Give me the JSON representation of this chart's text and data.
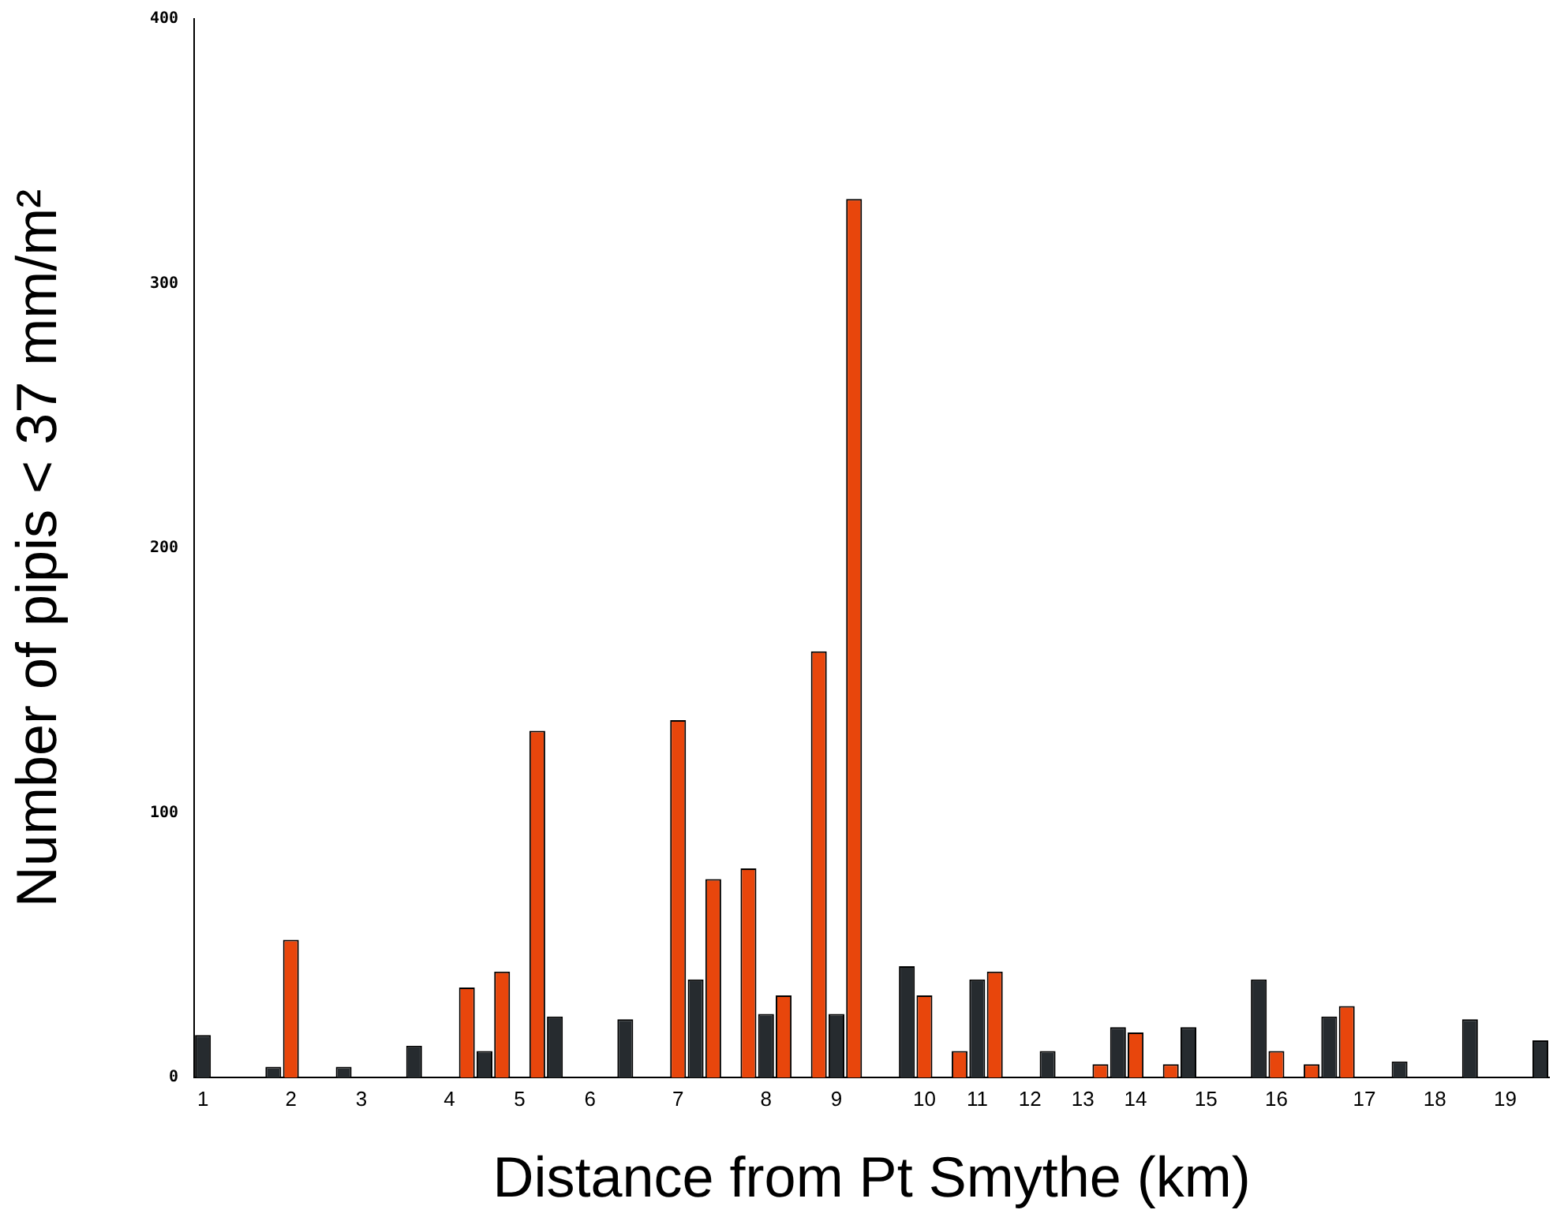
{
  "chart_data": {
    "type": "bar",
    "xlabel": "Distance from Pt Smythe (km)",
    "ylabel": "Number of pipis < 37 mm/m²",
    "categories": [
      "1",
      null,
      null,
      null,
      null,
      "2",
      null,
      null,
      null,
      "3",
      null,
      null,
      null,
      null,
      "4",
      null,
      null,
      null,
      "5",
      null,
      null,
      null,
      "6",
      null,
      null,
      null,
      null,
      "7",
      null,
      null,
      null,
      null,
      "8",
      null,
      null,
      null,
      "9",
      null,
      null,
      null,
      null,
      "10",
      null,
      null,
      "11",
      null,
      null,
      "12",
      null,
      null,
      "13",
      null,
      null,
      "14",
      null,
      null,
      null,
      "15",
      null,
      null,
      null,
      "16",
      null,
      null,
      null,
      null,
      "17",
      null,
      null,
      null,
      "18",
      null,
      null,
      null,
      "19",
      null,
      null
    ],
    "series": [
      {
        "color": "#262b2f",
        "values": [
          16,
          null,
          null,
          null,
          4,
          null,
          null,
          null,
          4,
          null,
          null,
          null,
          12,
          null,
          null,
          null,
          10,
          null,
          null,
          null,
          23,
          null,
          null,
          null,
          22,
          null,
          null,
          null,
          37,
          null,
          null,
          null,
          24,
          null,
          null,
          null,
          24,
          null,
          null,
          null,
          42,
          null,
          null,
          null,
          37,
          null,
          null,
          null,
          10,
          null,
          null,
          null,
          19,
          null,
          null,
          null,
          19,
          null,
          null,
          null,
          37,
          null,
          null,
          null,
          23,
          null,
          null,
          null,
          6,
          null,
          null,
          null,
          22,
          null,
          null,
          null,
          14
        ]
      },
      {
        "color": "#e8460c",
        "values": [
          null,
          null,
          null,
          null,
          null,
          52,
          null,
          null,
          null,
          null,
          null,
          null,
          null,
          null,
          null,
          34,
          null,
          40,
          null,
          131,
          null,
          null,
          null,
          null,
          null,
          null,
          null,
          135,
          null,
          75,
          null,
          79,
          null,
          31,
          null,
          161,
          null,
          332,
          null,
          null,
          null,
          31,
          null,
          10,
          null,
          40,
          null,
          null,
          null,
          null,
          null,
          5,
          null,
          17,
          null,
          5,
          null,
          null,
          null,
          null,
          null,
          10,
          null,
          5,
          null,
          27,
          null,
          null,
          null,
          null,
          null,
          null,
          null,
          null,
          null,
          null,
          null
        ]
      }
    ],
    "ylim": [
      0,
      400
    ],
    "yticks": [
      0,
      100,
      200,
      300,
      400
    ],
    "grid": false,
    "legend": false
  }
}
